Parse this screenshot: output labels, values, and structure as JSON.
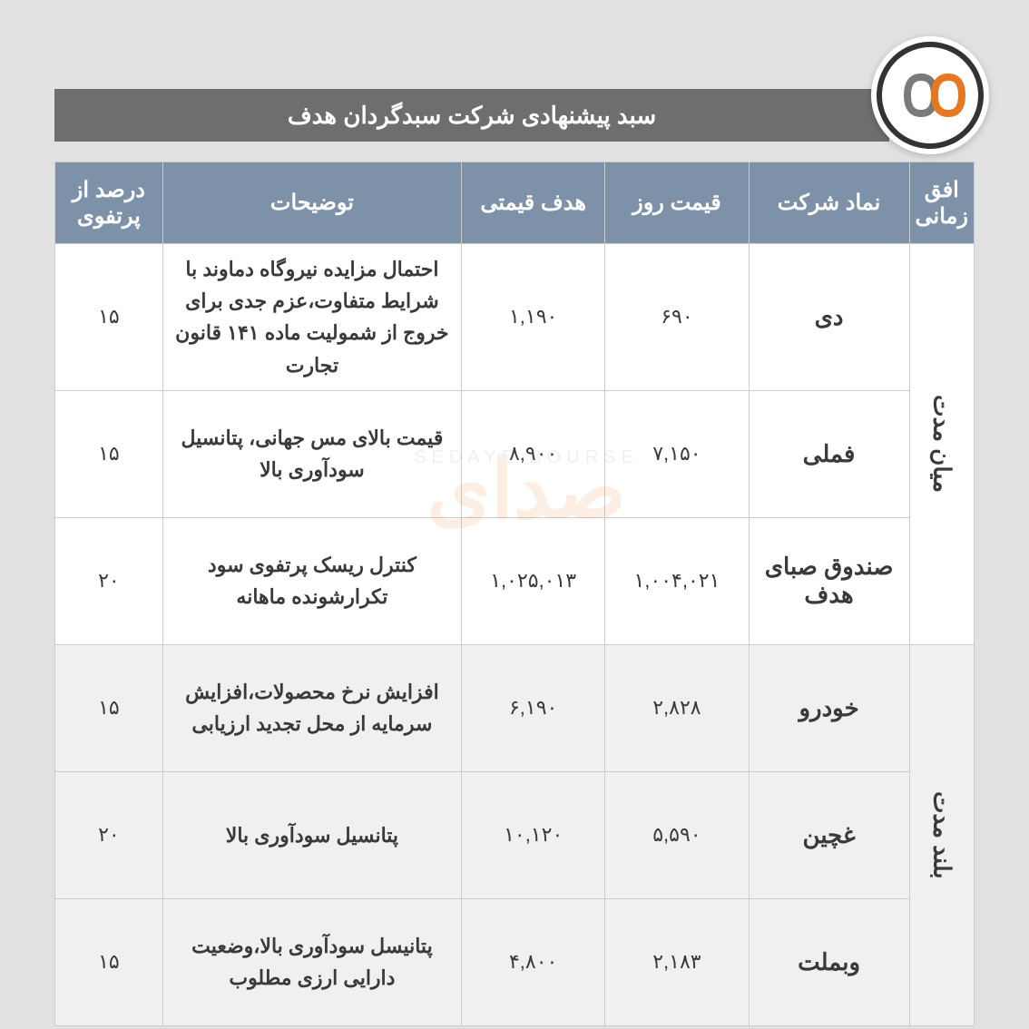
{
  "title": "سبد پیشنهادی  شرکت سبدگردان هدف",
  "headers": {
    "horizon": "افق زمانی",
    "symbol": "نماد شرکت",
    "price": "قیمت روز",
    "target": "هدف قیمتی",
    "desc": "توضیحات",
    "pct": "درصد از پرتفوی"
  },
  "groups": [
    {
      "horizon": "میان مدت",
      "alt": false,
      "rows": [
        {
          "symbol": "دی",
          "price": "۶۹۰",
          "target": "۱,۱۹۰",
          "desc": "احتمال مزایده نیروگاه دماوند با شرایط متفاوت،عزم جدی برای خروج از شمولیت ماده ۱۴۱ قانون تجارت",
          "pct": "۱۵"
        },
        {
          "symbol": "فملی",
          "price": "۷,۱۵۰",
          "target": "۸,۹۰۰",
          "desc": "قیمت بالای مس جهانی، پتانسیل سودآوری بالا",
          "pct": "۱۵"
        },
        {
          "symbol": "صندوق صبای هدف",
          "price": "۱,۰۰۴,۰۲۱",
          "target": "۱,۰۲۵,۰۱۳",
          "desc": "کنترل ریسک پرتفوی سود تکرارشونده ماهانه",
          "pct": "۲۰"
        }
      ]
    },
    {
      "horizon": "بلند مدت",
      "alt": true,
      "rows": [
        {
          "symbol": "خودرو",
          "price": "۲,۸۲۸",
          "target": "۶,۱۹۰",
          "desc": "افزایش نرخ محصولات،افزایش سرمایه از محل تجدید ارزیابی",
          "pct": "۱۵"
        },
        {
          "symbol": "غچین",
          "price": "۵,۵۹۰",
          "target": "۱۰,۱۲۰",
          "desc": "پتانسیل سودآوری بالا",
          "pct": "۲۰"
        },
        {
          "symbol": "وبملت",
          "price": "۲,۱۸۳",
          "target": "۴,۸۰۰",
          "desc": "پتانیسل سودآوری بالا،وضعیت دارایی ارزی مطلوب",
          "pct": "۱۵"
        }
      ]
    }
  ],
  "colors": {
    "page_bg": "#e1e1e1",
    "title_bg": "#6e6e6e",
    "header_bg": "#7d91a8",
    "row_bg": "#ffffff",
    "row_alt_bg": "#f0f0f0",
    "text": "#3a3a3a",
    "header_text": "#ffffff",
    "logo_accent": "#e87722",
    "logo_gray": "#7a7a7a"
  }
}
